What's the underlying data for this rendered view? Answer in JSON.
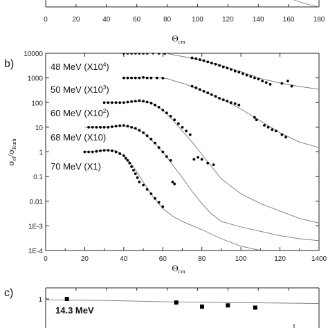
{
  "chart_data": [
    {
      "panel": "a",
      "type": "scatter",
      "xlabel": "Θ",
      "xlabel_sub": "cm",
      "xlim": [
        0,
        180
      ],
      "x_ticks": [
        "0",
        "20",
        "40",
        "60",
        "80",
        "100",
        "120",
        "140",
        "160",
        "180"
      ]
    },
    {
      "panel": "b",
      "panel_label": "b)",
      "type": "scatter",
      "xlabel": "Θ",
      "xlabel_sub": "cm",
      "ylabel": "σ",
      "ylabel_sub1": "el",
      "ylabel_sep": "/σ",
      "ylabel_sub2": "Ruth",
      "y_scale": "log",
      "xlim": [
        0,
        140
      ],
      "ylim": [
        0.0001,
        10000
      ],
      "x_ticks": [
        "0",
        "20",
        "40",
        "60",
        "80",
        "100",
        "120",
        "1400"
      ],
      "y_ticks": [
        "1E-4",
        "1E-3",
        "0.01",
        "0.1",
        "1",
        "10",
        "100",
        "1000",
        "10000"
      ],
      "series": [
        {
          "name": "48 MeV (X10",
          "name_sup": "4",
          "name_end": ")",
          "scale": 10000,
          "points": [
            [
              40,
              10000
            ],
            [
              42,
              10000
            ],
            [
              44,
              10000
            ],
            [
              46,
              10000
            ],
            [
              48,
              10000
            ],
            [
              50,
              10000
            ],
            [
              52,
              10000
            ],
            [
              55,
              10200
            ],
            [
              58,
              10000
            ],
            [
              61,
              9800
            ],
            [
              75,
              6500
            ],
            [
              77,
              6000
            ],
            [
              79,
              5500
            ],
            [
              81,
              5000
            ],
            [
              83,
              4500
            ],
            [
              85,
              4000
            ],
            [
              87,
              3600
            ],
            [
              89,
              3200
            ],
            [
              91,
              2800
            ],
            [
              93,
              2500
            ],
            [
              95,
              2200
            ],
            [
              97,
              1900
            ],
            [
              99,
              1700
            ],
            [
              101,
              1500
            ],
            [
              103,
              1300
            ],
            [
              105,
              1150
            ],
            [
              107,
              1000
            ],
            [
              109,
              900
            ],
            [
              111,
              750
            ],
            [
              113,
              650
            ],
            [
              115,
              550
            ],
            [
              121,
              600
            ],
            [
              124,
              750
            ],
            [
              126,
              460
            ]
          ],
          "curve": [
            [
              40,
              10000
            ],
            [
              50,
              10000
            ],
            [
              58,
              10000
            ],
            [
              62,
              9800
            ],
            [
              66,
              8500
            ],
            [
              72,
              7000
            ],
            [
              80,
              5200
            ],
            [
              90,
              3200
            ],
            [
              100,
              1800
            ],
            [
              110,
              950
            ],
            [
              120,
              620
            ],
            [
              130,
              450
            ],
            [
              140,
              350
            ]
          ]
        },
        {
          "name": "50 MeV (X10",
          "name_sup": "3",
          "name_end": ")",
          "scale": 1000,
          "points": [
            [
              40,
              1000
            ],
            [
              42,
              1000
            ],
            [
              44,
              1000
            ],
            [
              46,
              1000
            ],
            [
              48,
              1000
            ],
            [
              50,
              1050
            ],
            [
              52,
              1000
            ],
            [
              54,
              1000
            ],
            [
              57,
              1000
            ],
            [
              60,
              980
            ],
            [
              75,
              460
            ],
            [
              77,
              400
            ],
            [
              79,
              340
            ],
            [
              81,
              290
            ],
            [
              83,
              250
            ],
            [
              85,
              210
            ],
            [
              87,
              180
            ],
            [
              89,
              150
            ],
            [
              91,
              130
            ],
            [
              93,
              115
            ],
            [
              95,
              100
            ],
            [
              97,
              90
            ],
            [
              99,
              80
            ],
            [
              107,
              25
            ],
            [
              108,
              20
            ],
            [
              112,
              12
            ],
            [
              114,
              10
            ],
            [
              116,
              8
            ],
            [
              118,
              7
            ],
            [
              121,
              5
            ],
            [
              123,
              4
            ]
          ],
          "curve": [
            [
              40,
              1000
            ],
            [
              50,
              1000
            ],
            [
              58,
              1000
            ],
            [
              62,
              950
            ],
            [
              66,
              750
            ],
            [
              72,
              550
            ],
            [
              80,
              300
            ],
            [
              90,
              140
            ],
            [
              100,
              55
            ],
            [
              110,
              18
            ],
            [
              120,
              6
            ],
            [
              130,
              2.5
            ],
            [
              140,
              1.5
            ]
          ]
        },
        {
          "name": "60 MeV (X10",
          "name_sup": "2",
          "name_end": ")",
          "scale": 100,
          "points": [
            [
              30,
              100
            ],
            [
              32,
              100
            ],
            [
              34,
              100
            ],
            [
              36,
              100
            ],
            [
              38,
              100
            ],
            [
              40,
              100
            ],
            [
              42,
              105
            ],
            [
              44,
              110
            ],
            [
              46,
              115
            ],
            [
              48,
              120
            ],
            [
              50,
              115
            ],
            [
              52,
              105
            ],
            [
              54,
              95
            ],
            [
              56,
              80
            ],
            [
              58,
              65
            ],
            [
              60,
              50
            ],
            [
              62,
              38
            ],
            [
              64,
              28
            ],
            [
              66,
              20
            ],
            [
              68,
              14
            ],
            [
              70,
              10
            ],
            [
              72,
              7
            ],
            [
              74,
              5
            ],
            [
              76,
              0.5
            ],
            [
              78,
              0.6
            ],
            [
              80,
              0.5
            ],
            [
              83,
              0.35
            ],
            [
              86,
              0.3
            ]
          ],
          "curve": [
            [
              30,
              100
            ],
            [
              40,
              100
            ],
            [
              48,
              115
            ],
            [
              54,
              100
            ],
            [
              60,
              50
            ],
            [
              65,
              20
            ],
            [
              70,
              7
            ],
            [
              75,
              2.5
            ],
            [
              80,
              0.8
            ],
            [
              85,
              0.25
            ],
            [
              90,
              0.08
            ],
            [
              100,
              0.02
            ],
            [
              110,
              0.008
            ],
            [
              120,
              0.004
            ],
            [
              130,
              0.002
            ],
            [
              140,
              0.0013
            ]
          ]
        },
        {
          "name": "68 MeV (X10)",
          "name_sup": "",
          "name_end": "",
          "scale": 10,
          "points": [
            [
              22,
              10
            ],
            [
              24,
              10
            ],
            [
              26,
              10
            ],
            [
              28,
              10
            ],
            [
              30,
              10
            ],
            [
              32,
              10
            ],
            [
              34,
              10.5
            ],
            [
              36,
              11
            ],
            [
              38,
              11.5
            ],
            [
              40,
              12
            ],
            [
              42,
              11
            ],
            [
              44,
              10
            ],
            [
              46,
              9
            ],
            [
              48,
              7.5
            ],
            [
              50,
              6
            ],
            [
              52,
              4.5
            ],
            [
              54,
              3.3
            ],
            [
              56,
              2.3
            ],
            [
              58,
              1.5
            ],
            [
              60,
              1.0
            ],
            [
              62,
              0.65
            ],
            [
              64,
              0.45
            ],
            [
              65,
              0.06
            ],
            [
              66,
              0.05
            ]
          ],
          "curve": [
            [
              20,
              10
            ],
            [
              30,
              10
            ],
            [
              38,
              11.5
            ],
            [
              44,
              10
            ],
            [
              50,
              6
            ],
            [
              55,
              2.6
            ],
            [
              60,
              1
            ],
            [
              65,
              0.3
            ],
            [
              70,
              0.09
            ],
            [
              75,
              0.025
            ],
            [
              80,
              0.008
            ],
            [
              85,
              0.003
            ],
            [
              90,
              0.0015
            ],
            [
              100,
              0.0009
            ],
            [
              110,
              0.0006
            ],
            [
              120,
              0.0004
            ],
            [
              130,
              0.0003
            ],
            [
              140,
              0.00025
            ]
          ]
        },
        {
          "name": "70 MeV (X1)",
          "name_sup": "",
          "name_end": "",
          "scale": 1,
          "points": [
            [
              20,
              1
            ],
            [
              22,
              1
            ],
            [
              24,
              1
            ],
            [
              26,
              1.05
            ],
            [
              28,
              1.1
            ],
            [
              30,
              1.15
            ],
            [
              32,
              1.15
            ],
            [
              34,
              1.1
            ],
            [
              36,
              1
            ],
            [
              38,
              0.85
            ],
            [
              40,
              0.7
            ],
            [
              41,
              0.55
            ],
            [
              42,
              0.45
            ],
            [
              43,
              0.35
            ],
            [
              44,
              0.25
            ],
            [
              45,
              0.18
            ],
            [
              46,
              0.13
            ],
            [
              47,
              0.09
            ],
            [
              48,
              0.06
            ],
            [
              50,
              0.045
            ],
            [
              52,
              0.03
            ],
            [
              54,
              0.02
            ],
            [
              56,
              0.013
            ],
            [
              58,
              0.009
            ],
            [
              60,
              0.006
            ]
          ],
          "curve": [
            [
              20,
              1
            ],
            [
              28,
              1.1
            ],
            [
              32,
              1.2
            ],
            [
              36,
              1.1
            ],
            [
              40,
              0.7
            ],
            [
              45,
              0.25
            ],
            [
              50,
              0.06
            ],
            [
              55,
              0.015
            ],
            [
              60,
              0.005
            ],
            [
              65,
              0.0025
            ],
            [
              70,
              0.0015
            ],
            [
              80,
              0.0007
            ],
            [
              90,
              0.0003
            ],
            [
              100,
              0.00015
            ],
            [
              110,
              0.0001
            ]
          ]
        }
      ]
    },
    {
      "panel": "c",
      "panel_label": "c)",
      "type": "scatter",
      "xlim": [
        0,
        180
      ],
      "y_ticks": [
        "1"
      ],
      "series": [
        {
          "name": "14.3 MeV",
          "points": [
            [
              14,
              1.0
            ],
            [
              86,
              0.82
            ],
            [
              103,
              0.65
            ],
            [
              120,
              0.7
            ],
            [
              138,
              0.62
            ]
          ],
          "curve": [
            [
              0,
              0.95
            ],
            [
              40,
              0.92
            ],
            [
              80,
              0.85
            ],
            [
              120,
              0.82
            ],
            [
              180,
              0.78
            ]
          ]
        }
      ]
    }
  ]
}
